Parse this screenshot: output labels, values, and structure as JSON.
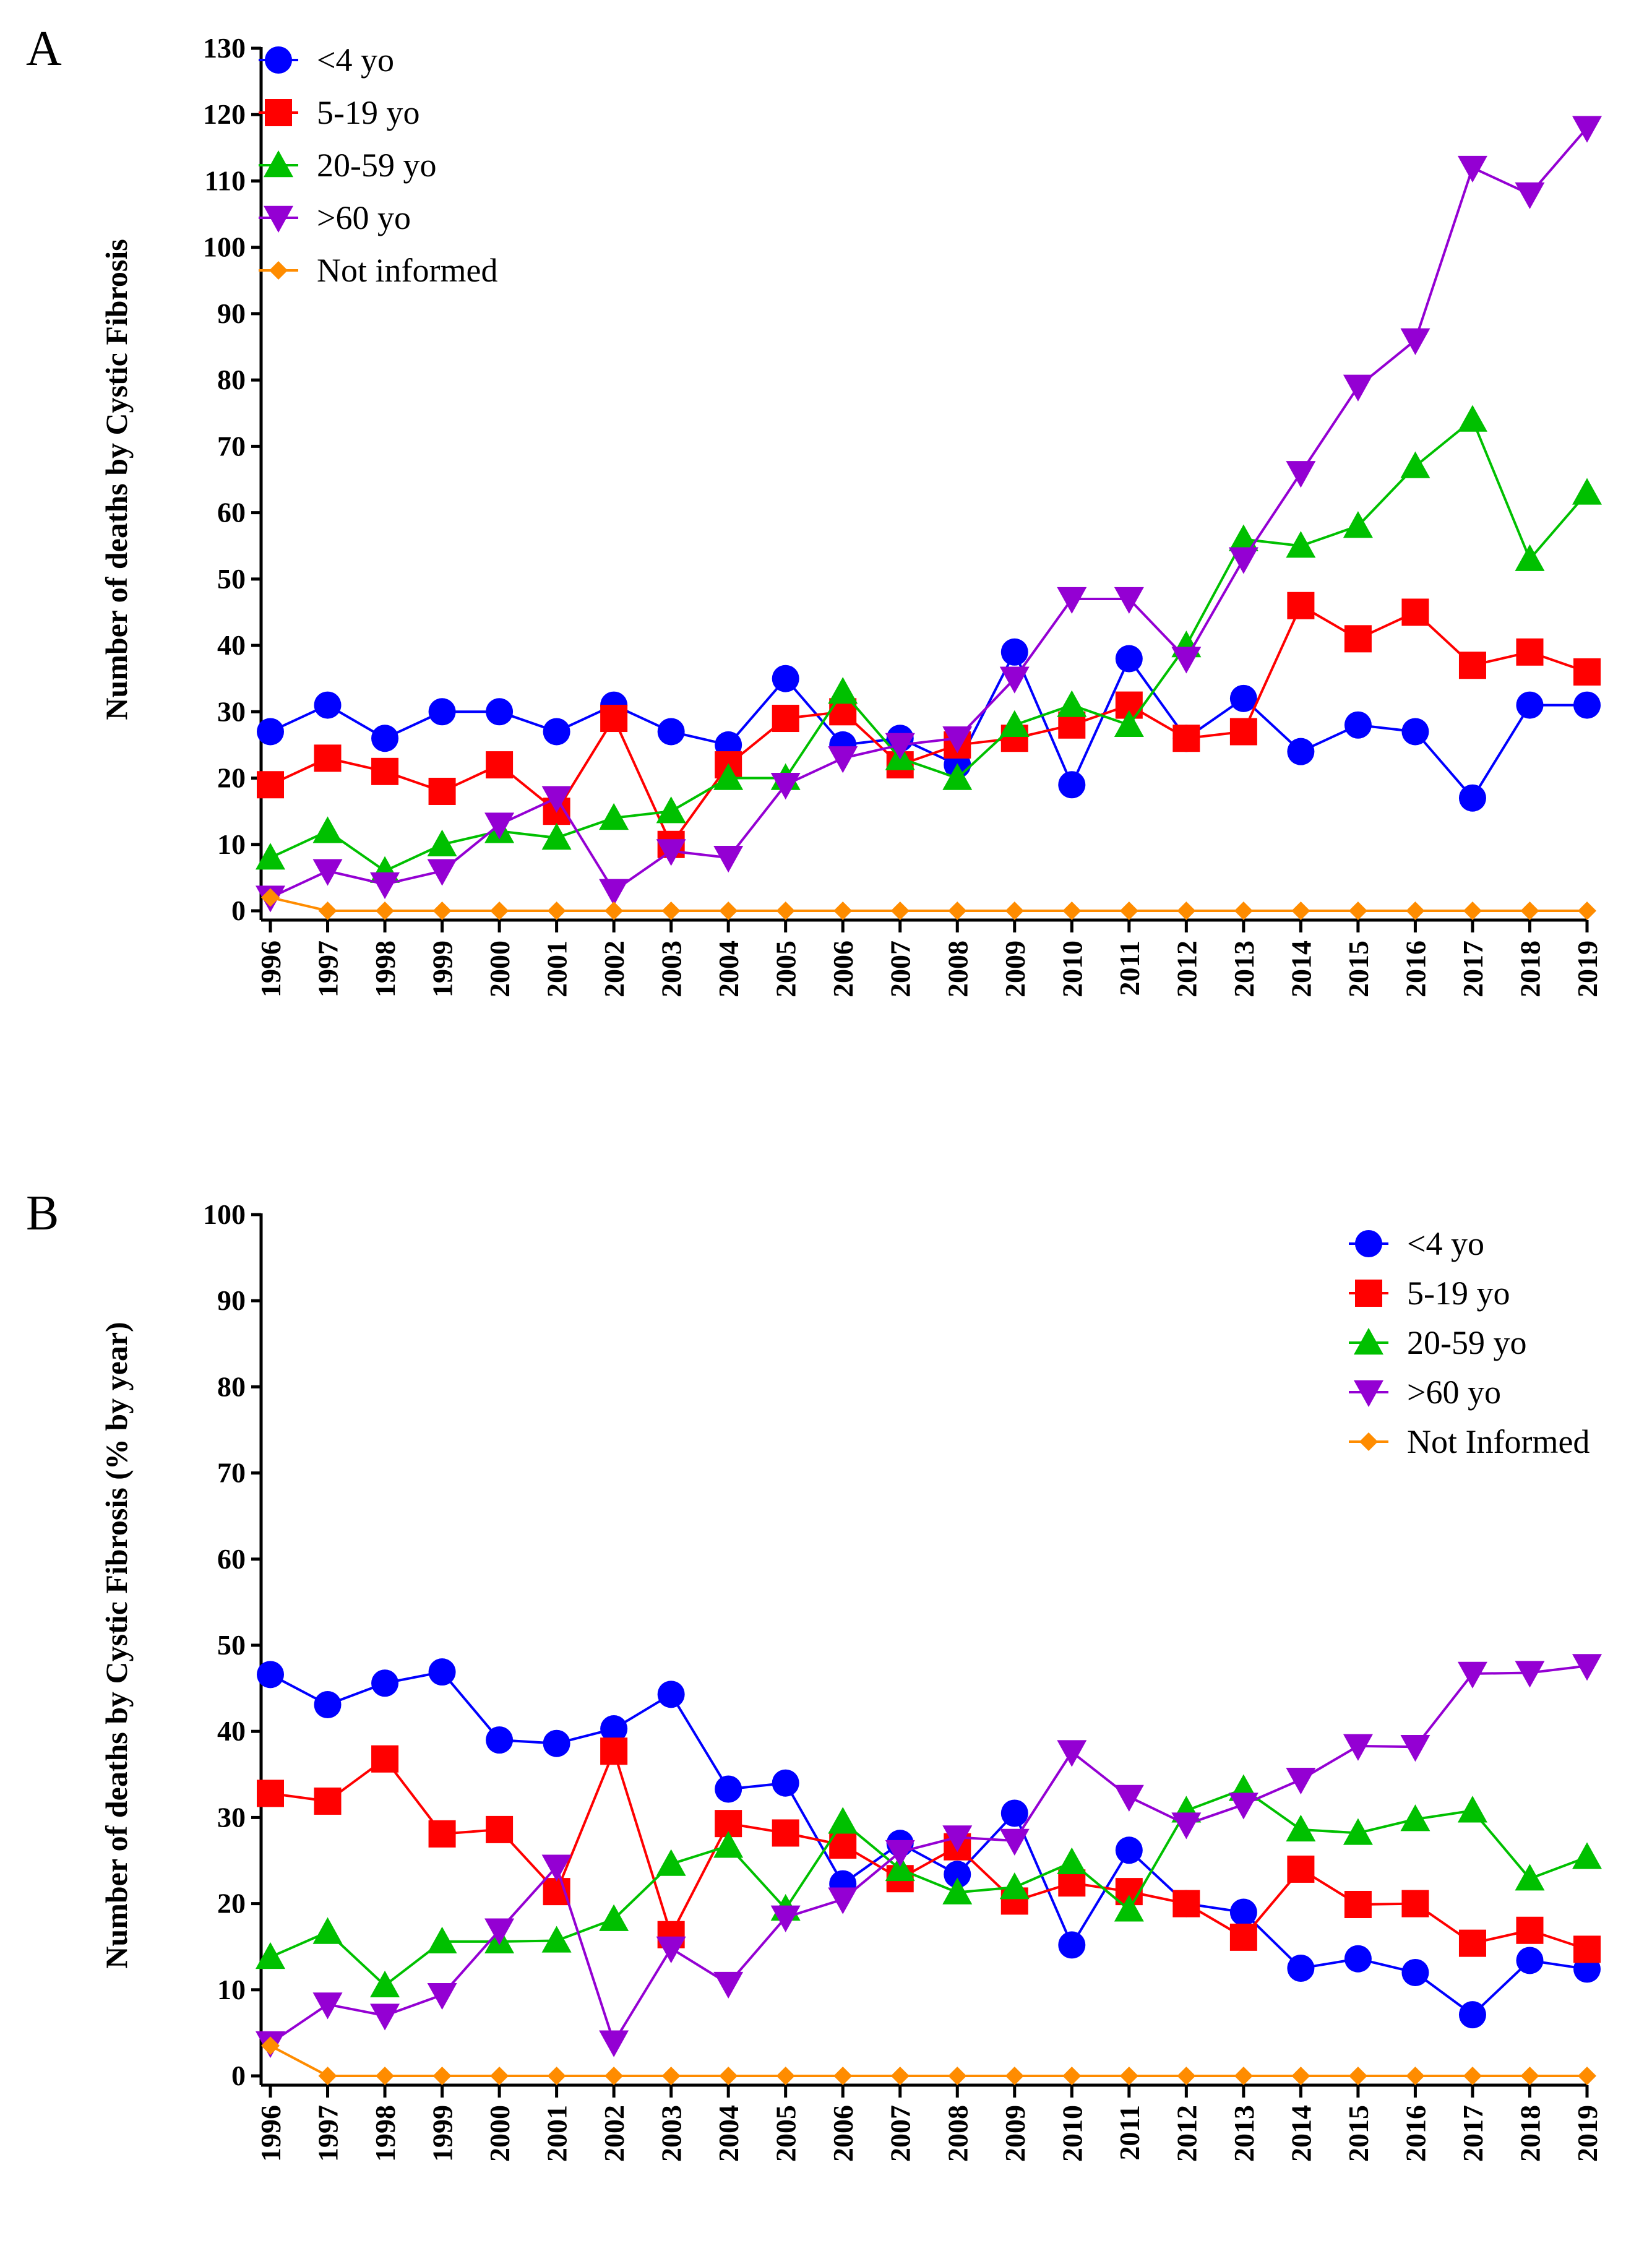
{
  "colors": {
    "lt4": "#0000ff",
    "y5_19": "#ff0000",
    "y20_59": "#00c000",
    "gt60": "#9400d3",
    "not_informed": "#ff8c00"
  },
  "chart_data": [
    {
      "panel": "A",
      "type": "line",
      "title": "",
      "xlabel": "",
      "ylabel": "Number of deaths by Cystic Fibrosis",
      "ylim": [
        0,
        130
      ],
      "yticks": [
        0,
        10,
        20,
        30,
        40,
        50,
        60,
        70,
        80,
        90,
        100,
        110,
        120,
        130
      ],
      "legend_position": "top-left",
      "x": [
        "1996",
        "1997",
        "1998",
        "1999",
        "2000",
        "2001",
        "2002",
        "2003",
        "2004",
        "2005",
        "2006",
        "2007",
        "2008",
        "2009",
        "2010",
        "2011",
        "2012",
        "2013",
        "2014",
        "2015",
        "2016",
        "2017",
        "2018",
        "2019"
      ],
      "series": [
        {
          "name": "<4 yo",
          "marker": "circle",
          "color_key": "lt4",
          "values": [
            27,
            31,
            26,
            30,
            30,
            27,
            31,
            27,
            25,
            35,
            25,
            26,
            22,
            39,
            19,
            38,
            26,
            32,
            24,
            28,
            27,
            17,
            31,
            31
          ]
        },
        {
          "name": "5-19 yo",
          "marker": "square",
          "color_key": "y5_19",
          "values": [
            19,
            23,
            21,
            18,
            22,
            15,
            29,
            10,
            22,
            29,
            30,
            22,
            25,
            26,
            28,
            31,
            26,
            27,
            46,
            41,
            45,
            37,
            39,
            36
          ]
        },
        {
          "name": "20-59 yo",
          "marker": "triangle-up",
          "color_key": "y20_59",
          "values": [
            8,
            12,
            6,
            10,
            12,
            11,
            14,
            15,
            20,
            20,
            33,
            23,
            20,
            28,
            31,
            28,
            40,
            56,
            55,
            58,
            67,
            74,
            53,
            63
          ]
        },
        {
          "name": ">60 yo",
          "marker": "triangle-down",
          "color_key": "gt60",
          "values": [
            2,
            6,
            4,
            6,
            13,
            17,
            3,
            9,
            8,
            19,
            23,
            25,
            26,
            35,
            47,
            47,
            38,
            53,
            66,
            79,
            86,
            112,
            108,
            118
          ]
        },
        {
          "name": "Not informed",
          "marker": "diamond",
          "color_key": "not_informed",
          "values": [
            2,
            0,
            0,
            0,
            0,
            0,
            0,
            0,
            0,
            0,
            0,
            0,
            0,
            0,
            0,
            0,
            0,
            0,
            0,
            0,
            0,
            0,
            0,
            0
          ]
        }
      ]
    },
    {
      "panel": "B",
      "type": "line",
      "title": "",
      "xlabel": "",
      "ylabel": "Number of deaths by Cystic Fibrosis (% by year)",
      "ylim": [
        0,
        100
      ],
      "yticks": [
        0,
        10,
        20,
        30,
        40,
        50,
        60,
        70,
        80,
        90,
        100
      ],
      "legend_position": "top-right",
      "x": [
        "1996",
        "1997",
        "1998",
        "1999",
        "2000",
        "2001",
        "2002",
        "2003",
        "2004",
        "2005",
        "2006",
        "2007",
        "2008",
        "2009",
        "2010",
        "2011",
        "2012",
        "2013",
        "2014",
        "2015",
        "2016",
        "2017",
        "2018",
        "2019"
      ],
      "series": [
        {
          "name": "<4 yo",
          "marker": "circle",
          "color_key": "lt4",
          "values": [
            46.6,
            43.1,
            45.6,
            46.9,
            39.0,
            38.6,
            40.3,
            44.3,
            33.3,
            34.0,
            22.3,
            27.0,
            23.4,
            30.5,
            15.2,
            26.2,
            20.0,
            19.0,
            12.5,
            13.6,
            12.0,
            7.1,
            13.4,
            12.4
          ]
        },
        {
          "name": "5-19 yo",
          "marker": "square",
          "color_key": "y5_19",
          "values": [
            32.8,
            31.9,
            36.8,
            28.1,
            28.6,
            21.4,
            37.7,
            16.4,
            29.3,
            28.2,
            26.8,
            22.9,
            26.6,
            20.3,
            22.4,
            21.4,
            20.0,
            16.1,
            24.0,
            19.9,
            20.0,
            15.4,
            16.9,
            14.7
          ]
        },
        {
          "name": "20-59 yo",
          "marker": "triangle-up",
          "color_key": "y20_59",
          "values": [
            13.8,
            16.7,
            10.5,
            15.6,
            15.6,
            15.7,
            18.2,
            24.6,
            26.7,
            19.4,
            29.5,
            24.0,
            21.3,
            21.9,
            24.8,
            19.3,
            30.8,
            33.3,
            28.6,
            28.2,
            29.8,
            30.8,
            22.9,
            25.4
          ]
        },
        {
          "name": ">60 yo",
          "marker": "triangle-down",
          "color_key": "gt60",
          "values": [
            3.8,
            8.3,
            7.0,
            9.4,
            16.9,
            24.3,
            3.9,
            14.8,
            10.7,
            18.4,
            20.5,
            26.0,
            27.7,
            27.3,
            37.6,
            32.4,
            29.2,
            31.5,
            34.4,
            38.3,
            38.2,
            46.7,
            46.8,
            47.6
          ]
        },
        {
          "name": "Not Informed",
          "marker": "diamond",
          "color_key": "not_informed",
          "values": [
            3.5,
            0,
            0,
            0,
            0,
            0,
            0,
            0,
            0,
            0,
            0,
            0,
            0,
            0,
            0,
            0,
            0,
            0,
            0,
            0,
            0,
            0,
            0,
            0
          ]
        }
      ]
    }
  ]
}
